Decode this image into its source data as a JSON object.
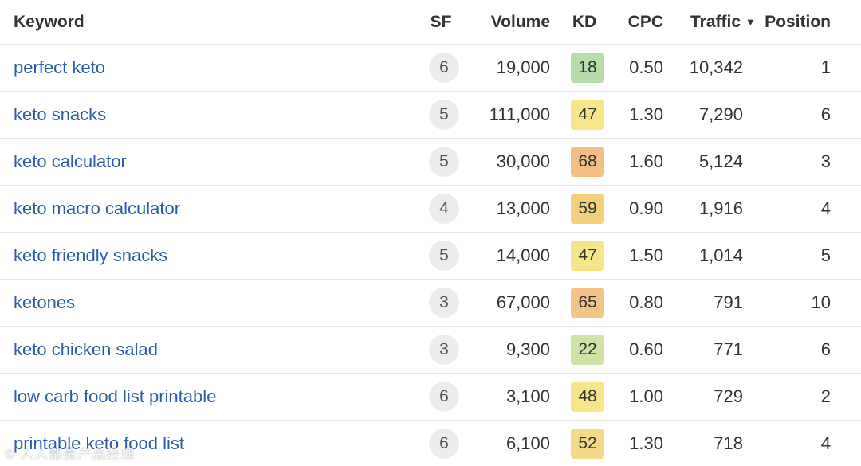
{
  "headers": {
    "keyword": "Keyword",
    "sf": "SF",
    "volume": "Volume",
    "kd": "KD",
    "cpc": "CPC",
    "traffic": "Traffic",
    "traffic_sort_icon": "caret-down-icon",
    "position": "Position"
  },
  "kd_colors": {
    "easy": "#b6dcaa",
    "easy_medium": "#cfe4a4",
    "medium": "#f7e58c",
    "medium_hard": "#f5d07c",
    "hard": "#f3bf86"
  },
  "rows": [
    {
      "keyword": "perfect keto",
      "sf": "6",
      "volume": "19,000",
      "kd": "18",
      "kd_color": "#b6dcaa",
      "cpc": "0.50",
      "traffic": "10,342",
      "position": "1"
    },
    {
      "keyword": "keto snacks",
      "sf": "5",
      "volume": "111,000",
      "kd": "47",
      "kd_color": "#f7e58c",
      "cpc": "1.30",
      "traffic": "7,290",
      "position": "6"
    },
    {
      "keyword": "keto calculator",
      "sf": "5",
      "volume": "30,000",
      "kd": "68",
      "kd_color": "#f3bf86",
      "cpc": "1.60",
      "traffic": "5,124",
      "position": "3"
    },
    {
      "keyword": "keto macro calculator",
      "sf": "4",
      "volume": "13,000",
      "kd": "59",
      "kd_color": "#f5d07c",
      "cpc": "0.90",
      "traffic": "1,916",
      "position": "4"
    },
    {
      "keyword": "keto friendly snacks",
      "sf": "5",
      "volume": "14,000",
      "kd": "47",
      "kd_color": "#f7e58c",
      "cpc": "1.50",
      "traffic": "1,014",
      "position": "5"
    },
    {
      "keyword": "ketones",
      "sf": "3",
      "volume": "67,000",
      "kd": "65",
      "kd_color": "#f3c488",
      "cpc": "0.80",
      "traffic": "791",
      "position": "10"
    },
    {
      "keyword": "keto chicken salad",
      "sf": "3",
      "volume": "9,300",
      "kd": "22",
      "kd_color": "#cfe4a4",
      "cpc": "0.60",
      "traffic": "771",
      "position": "6"
    },
    {
      "keyword": "low carb food list printable",
      "sf": "6",
      "volume": "3,100",
      "kd": "48",
      "kd_color": "#f7e58c",
      "cpc": "1.00",
      "traffic": "729",
      "position": "2"
    },
    {
      "keyword": "printable keto food list",
      "sf": "6",
      "volume": "6,100",
      "kd": "52",
      "kd_color": "#f5d98a",
      "cpc": "1.30",
      "traffic": "718",
      "position": "4"
    }
  ],
  "watermark": "© 人人都是产品经理"
}
